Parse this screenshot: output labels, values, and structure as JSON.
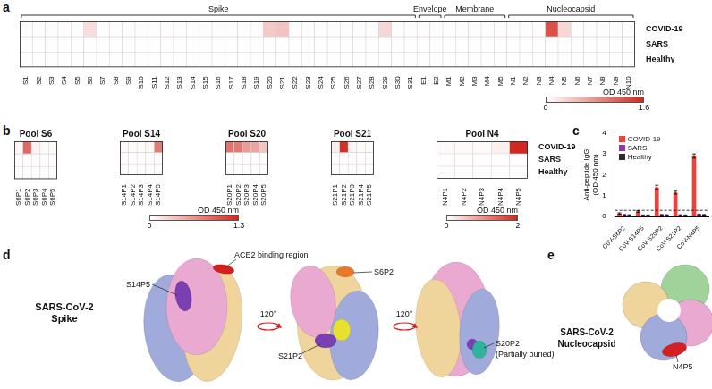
{
  "chart_data": [
    {
      "panel": "a",
      "type": "heatmap",
      "groups": [
        {
          "name": "Spike",
          "first": "S1",
          "last": "S31"
        },
        {
          "name": "Envelope",
          "first": "E1",
          "last": "E2"
        },
        {
          "name": "Membrane",
          "first": "M1",
          "last": "M5"
        },
        {
          "name": "Nucleocapsid",
          "first": "N1",
          "last": "N10"
        }
      ],
      "columns": [
        "S1",
        "S2",
        "S3",
        "S4",
        "S5",
        "S6",
        "S7",
        "S8",
        "S9",
        "S10",
        "S11",
        "S12",
        "S13",
        "S14",
        "S15",
        "S16",
        "S17",
        "S18",
        "S19",
        "S20",
        "S21",
        "S22",
        "S23",
        "S24",
        "S25",
        "S26",
        "S27",
        "S28",
        "S29",
        "S30",
        "S31",
        "E1",
        "E2",
        "M1",
        "M2",
        "M3",
        "M4",
        "M5",
        "N1",
        "N2",
        "N3",
        "N4",
        "N5",
        "N6",
        "N7",
        "N8",
        "N9",
        "N10"
      ],
      "rows": [
        "COVID-19",
        "SARS",
        "Healthy"
      ],
      "cells": [
        [
          0.02,
          0.02,
          0.02,
          0.02,
          0.02,
          0.25,
          0.02,
          0.02,
          0.02,
          0.02,
          0.02,
          0.02,
          0.02,
          0.02,
          0.02,
          0.02,
          0.02,
          0.02,
          0.02,
          0.4,
          0.45,
          0.02,
          0.02,
          0.02,
          0.02,
          0.02,
          0.02,
          0.02,
          0.3,
          0.02,
          0.02,
          0.02,
          0.02,
          0.02,
          0.02,
          0.02,
          0.02,
          0.02,
          0.02,
          0.02,
          0.02,
          1.3,
          0.3,
          0.02,
          0.02,
          0.02,
          0.02,
          0.02
        ],
        [
          0.01,
          0.01,
          0.01,
          0.01,
          0.01,
          0.01,
          0.01,
          0.01,
          0.01,
          0.01,
          0.01,
          0.01,
          0.01,
          0.01,
          0.01,
          0.01,
          0.01,
          0.01,
          0.01,
          0.01,
          0.01,
          0.01,
          0.01,
          0.01,
          0.01,
          0.01,
          0.01,
          0.01,
          0.01,
          0.01,
          0.01,
          0.01,
          0.01,
          0.01,
          0.01,
          0.01,
          0.01,
          0.01,
          0.01,
          0.01,
          0.01,
          0.01,
          0.01,
          0.01,
          0.01,
          0.01,
          0.01,
          0.01
        ],
        [
          0.01,
          0.01,
          0.01,
          0.01,
          0.01,
          0.01,
          0.01,
          0.01,
          0.01,
          0.01,
          0.01,
          0.01,
          0.01,
          0.01,
          0.01,
          0.01,
          0.01,
          0.01,
          0.01,
          0.01,
          0.01,
          0.01,
          0.01,
          0.01,
          0.01,
          0.01,
          0.01,
          0.01,
          0.01,
          0.01,
          0.01,
          0.01,
          0.01,
          0.01,
          0.01,
          0.01,
          0.01,
          0.01,
          0.01,
          0.01,
          0.01,
          0.01,
          0.01,
          0.01,
          0.01,
          0.01,
          0.01,
          0.01
        ]
      ],
      "colorbar": {
        "label": "OD 450 nm",
        "range": [
          0,
          1.6
        ],
        "ticks": [
          0,
          1.6
        ]
      }
    },
    {
      "panel": "b",
      "type": "heatmap",
      "rows": [
        "COVID-19",
        "SARS",
        "Healthy"
      ],
      "pools": [
        {
          "title": "Pool S6",
          "columns": [
            "S6P1",
            "S6P2",
            "S6P3",
            "S6P4",
            "S6P5"
          ],
          "cells": [
            [
              0.05,
              0.9,
              0.08,
              0.03,
              0.03
            ],
            [
              0.02,
              0.02,
              0.02,
              0.02,
              0.02
            ],
            [
              0.02,
              0.02,
              0.02,
              0.02,
              0.02
            ]
          ]
        },
        {
          "title": "Pool S14",
          "columns": [
            "S14P1",
            "S14P2",
            "S14P3",
            "S14P4",
            "S14P5"
          ],
          "cells": [
            [
              0.03,
              0.03,
              0.03,
              0.05,
              0.8
            ],
            [
              0.02,
              0.02,
              0.02,
              0.02,
              0.02
            ],
            [
              0.02,
              0.02,
              0.02,
              0.02,
              0.02
            ]
          ]
        },
        {
          "title": "Pool S20",
          "columns": [
            "S20P1",
            "S20P2",
            "S20P3",
            "S20P4",
            "S20P5"
          ],
          "cells": [
            [
              0.85,
              0.8,
              0.6,
              0.55,
              0.35
            ],
            [
              0.02,
              0.02,
              0.02,
              0.02,
              0.02
            ],
            [
              0.02,
              0.02,
              0.02,
              0.02,
              0.02
            ]
          ]
        },
        {
          "title": "Pool S21",
          "columns": [
            "S21P1",
            "S21P2",
            "S21P3",
            "S21P4",
            "S21P5"
          ],
          "cells": [
            [
              0.1,
              1.25,
              0.05,
              0.03,
              0.03
            ],
            [
              0.02,
              0.02,
              0.02,
              0.02,
              0.02
            ],
            [
              0.02,
              0.02,
              0.02,
              0.02,
              0.02
            ]
          ]
        },
        {
          "title": "Pool N4",
          "columns": [
            "N4P1",
            "N4P2",
            "N4P3",
            "N4P4",
            "N4P5"
          ],
          "cells": [
            [
              0.05,
              0.05,
              0.05,
              0.15,
              2.0
            ],
            [
              0.02,
              0.02,
              0.02,
              0.02,
              0.02
            ],
            [
              0.02,
              0.02,
              0.02,
              0.02,
              0.02
            ]
          ]
        }
      ],
      "colorbars": [
        {
          "label": "OD 450 nm",
          "range": [
            0,
            1.3
          ],
          "ticks": [
            0,
            1.3
          ],
          "pools": [
            "Pool S6",
            "Pool S14",
            "Pool S20",
            "Pool S21"
          ]
        },
        {
          "label": "OD 450 nm",
          "range": [
            0,
            2
          ],
          "ticks": [
            0,
            2
          ],
          "pools": [
            "Pool N4"
          ]
        }
      ]
    },
    {
      "panel": "c",
      "type": "bar",
      "categories": [
        "CoV-S6P2",
        "CoV-S14P5",
        "CoV-S20P2",
        "CoV-S21P2",
        "CoV-N4P5"
      ],
      "y_label": [
        "Anti-peptide IgG",
        "(OD 450 nm)"
      ],
      "ylim": [
        0,
        4
      ],
      "yticks": [
        0,
        1,
        2,
        3,
        4
      ],
      "cutoff": 0.3,
      "legend": "upper left",
      "series": [
        {
          "name": "COVID-19",
          "color": "#e8453c",
          "values": [
            0.15,
            0.25,
            1.4,
            1.15,
            2.9
          ],
          "errors": [
            0.03,
            0.04,
            0.1,
            0.07,
            0.1
          ]
        },
        {
          "name": "SARS",
          "color": "#8e3a9d",
          "values": [
            0.08,
            0.06,
            0.08,
            0.07,
            0.1
          ],
          "errors": [
            0.02,
            0.02,
            0.02,
            0.02,
            0.02
          ]
        },
        {
          "name": "Healthy",
          "color": "#2b2b2b",
          "values": [
            0.07,
            0.06,
            0.07,
            0.06,
            0.08
          ],
          "errors": [
            0.02,
            0.02,
            0.02,
            0.02,
            0.02
          ]
        }
      ]
    }
  ],
  "structures": [
    {
      "panel": "d",
      "title": [
        "SARS-CoV-2",
        "Spike"
      ],
      "rotation": "120°",
      "views": [
        {
          "labels": [
            "S14P5",
            "ACE2 binding region"
          ]
        },
        {
          "labels": [
            "S6P2",
            "S21P2"
          ]
        },
        {
          "labels": [
            "S20P2",
            "(Partially buried)"
          ]
        }
      ]
    },
    {
      "panel": "e",
      "title": [
        "SARS-CoV-2",
        "Nucleocapsid"
      ],
      "labels": [
        "N4P5"
      ]
    }
  ]
}
